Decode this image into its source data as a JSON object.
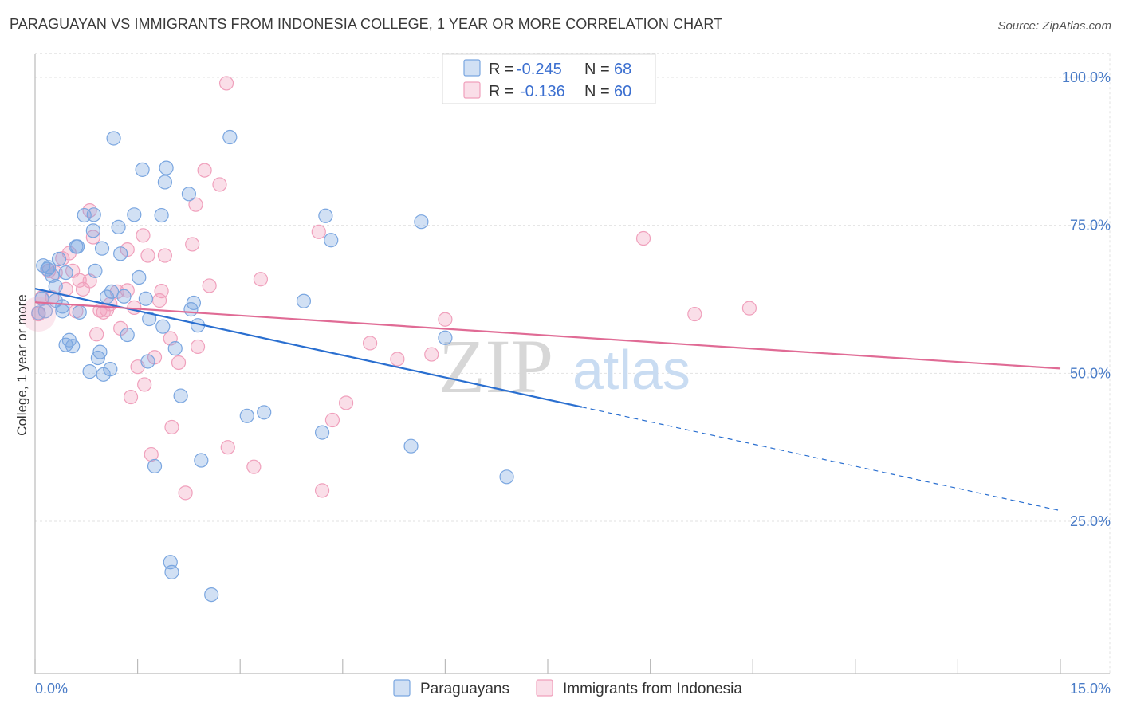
{
  "title": "PARAGUAYAN VS IMMIGRANTS FROM INDONESIA COLLEGE, 1 YEAR OR MORE CORRELATION CHART",
  "source": "Source: ZipAtlas.com",
  "watermark": {
    "zip": "ZIP",
    "atlas": "atlas"
  },
  "chart_data": {
    "type": "scatter",
    "ylabel": "College, 1 year or more",
    "xlim": [
      0,
      15
    ],
    "ylim": [
      0,
      105
    ],
    "x_tick_labels": [
      "0.0%",
      "15.0%"
    ],
    "y_ticks": [
      25,
      50,
      75,
      100
    ],
    "y_tick_labels": [
      "25.0%",
      "50.0%",
      "75.0%",
      "100.0%"
    ],
    "grid": true,
    "legend": {
      "placement": "top-center",
      "entries": [
        {
          "r_label": "R = ",
          "r_value": "-0.245",
          "n_label": "N = ",
          "n_value": "68"
        },
        {
          "r_label": "R = ",
          "r_value": "-0.136",
          "n_label": "N = ",
          "n_value": "60"
        }
      ]
    },
    "series": [
      {
        "name": "Paraguayans",
        "color": "#7aa6e0",
        "fill": "rgba(122,166,224,0.35)",
        "line_color": "#2a6fd0",
        "trend": {
          "x0": 0.0,
          "y0": 64.3,
          "x1": 8.0,
          "y1": 44.3,
          "dash_to_x": 15.0,
          "dash_to_y": 26.8
        },
        "points": [
          [
            0.05,
            60.2
          ],
          [
            0.1,
            62.6
          ],
          [
            0.12,
            68.2
          ],
          [
            0.18,
            67.6
          ],
          [
            0.2,
            67.9
          ],
          [
            0.3,
            64.7
          ],
          [
            0.3,
            62.3
          ],
          [
            0.35,
            69.3
          ],
          [
            0.4,
            61.3
          ],
          [
            0.4,
            60.5
          ],
          [
            0.45,
            67.0
          ],
          [
            0.45,
            54.8
          ],
          [
            0.5,
            55.6
          ],
          [
            0.55,
            54.6
          ],
          [
            0.6,
            71.4
          ],
          [
            0.62,
            71.4
          ],
          [
            0.65,
            60.3
          ],
          [
            0.72,
            76.7
          ],
          [
            0.8,
            50.3
          ],
          [
            0.85,
            74.1
          ],
          [
            0.86,
            76.8
          ],
          [
            0.88,
            67.3
          ],
          [
            0.92,
            52.6
          ],
          [
            0.95,
            53.6
          ],
          [
            0.98,
            71.1
          ],
          [
            1.0,
            49.8
          ],
          [
            1.05,
            62.9
          ],
          [
            1.1,
            50.7
          ],
          [
            1.12,
            63.8
          ],
          [
            1.15,
            89.7
          ],
          [
            1.22,
            74.7
          ],
          [
            1.25,
            70.2
          ],
          [
            1.35,
            56.5
          ],
          [
            1.45,
            76.8
          ],
          [
            1.52,
            66.2
          ],
          [
            1.57,
            84.4
          ],
          [
            1.62,
            62.6
          ],
          [
            1.65,
            52.0
          ],
          [
            1.67,
            59.2
          ],
          [
            1.75,
            34.3
          ],
          [
            1.85,
            76.7
          ],
          [
            1.87,
            57.9
          ],
          [
            1.9,
            82.3
          ],
          [
            1.92,
            84.7
          ],
          [
            1.98,
            18.1
          ],
          [
            2.0,
            16.4
          ],
          [
            2.05,
            54.2
          ],
          [
            2.13,
            46.2
          ],
          [
            2.25,
            80.3
          ],
          [
            2.28,
            60.8
          ],
          [
            2.32,
            61.9
          ],
          [
            2.38,
            58.1
          ],
          [
            2.43,
            35.3
          ],
          [
            2.58,
            12.6
          ],
          [
            2.85,
            89.9
          ],
          [
            3.1,
            42.8
          ],
          [
            3.35,
            43.4
          ],
          [
            3.93,
            62.2
          ],
          [
            4.2,
            40.0
          ],
          [
            4.25,
            76.6
          ],
          [
            4.33,
            72.5
          ],
          [
            5.5,
            37.7
          ],
          [
            5.65,
            75.6
          ],
          [
            6.0,
            56.0
          ],
          [
            6.9,
            32.5
          ],
          [
            0.15,
            60.5
          ],
          [
            0.25,
            66.5
          ],
          [
            1.3,
            63.0
          ]
        ]
      },
      {
        "name": "Immigrants from Indonesia",
        "color": "#f0a0bc",
        "fill": "rgba(240,160,188,0.35)",
        "line_color": "#e06b95",
        "trend": {
          "x0": 0.0,
          "y0": 62.0,
          "x1": 15.0,
          "y1": 50.8
        },
        "points": [
          [
            0.05,
            60.0
          ],
          [
            0.1,
            62.8
          ],
          [
            0.2,
            67.3
          ],
          [
            0.25,
            62.8
          ],
          [
            0.3,
            67.0
          ],
          [
            0.4,
            69.4
          ],
          [
            0.45,
            64.2
          ],
          [
            0.5,
            70.3
          ],
          [
            0.55,
            67.3
          ],
          [
            0.6,
            60.5
          ],
          [
            0.65,
            65.7
          ],
          [
            0.7,
            64.2
          ],
          [
            0.8,
            65.6
          ],
          [
            0.8,
            77.5
          ],
          [
            0.85,
            73.0
          ],
          [
            0.9,
            56.6
          ],
          [
            0.95,
            60.6
          ],
          [
            1.0,
            60.3
          ],
          [
            1.05,
            60.7
          ],
          [
            1.1,
            61.7
          ],
          [
            1.2,
            63.8
          ],
          [
            1.25,
            57.6
          ],
          [
            1.35,
            64.0
          ],
          [
            1.35,
            70.9
          ],
          [
            1.4,
            46.0
          ],
          [
            1.45,
            61.1
          ],
          [
            1.5,
            51.1
          ],
          [
            1.58,
            73.3
          ],
          [
            1.6,
            48.1
          ],
          [
            1.65,
            69.9
          ],
          [
            1.7,
            36.3
          ],
          [
            1.75,
            52.7
          ],
          [
            1.82,
            62.3
          ],
          [
            1.85,
            63.9
          ],
          [
            1.9,
            69.9
          ],
          [
            1.98,
            55.9
          ],
          [
            2.0,
            40.9
          ],
          [
            2.1,
            51.8
          ],
          [
            2.2,
            29.8
          ],
          [
            2.3,
            71.8
          ],
          [
            2.35,
            78.5
          ],
          [
            2.38,
            54.5
          ],
          [
            2.48,
            84.3
          ],
          [
            2.55,
            64.8
          ],
          [
            2.7,
            81.9
          ],
          [
            2.8,
            99.0
          ],
          [
            2.82,
            37.5
          ],
          [
            3.2,
            34.2
          ],
          [
            3.3,
            65.9
          ],
          [
            4.15,
            73.9
          ],
          [
            4.2,
            30.2
          ],
          [
            4.35,
            42.1
          ],
          [
            4.55,
            45.0
          ],
          [
            4.9,
            55.1
          ],
          [
            5.3,
            52.4
          ],
          [
            5.8,
            53.2
          ],
          [
            6.0,
            59.1
          ],
          [
            8.9,
            72.8
          ],
          [
            9.65,
            60.0
          ],
          [
            10.45,
            61.0
          ]
        ]
      }
    ]
  }
}
